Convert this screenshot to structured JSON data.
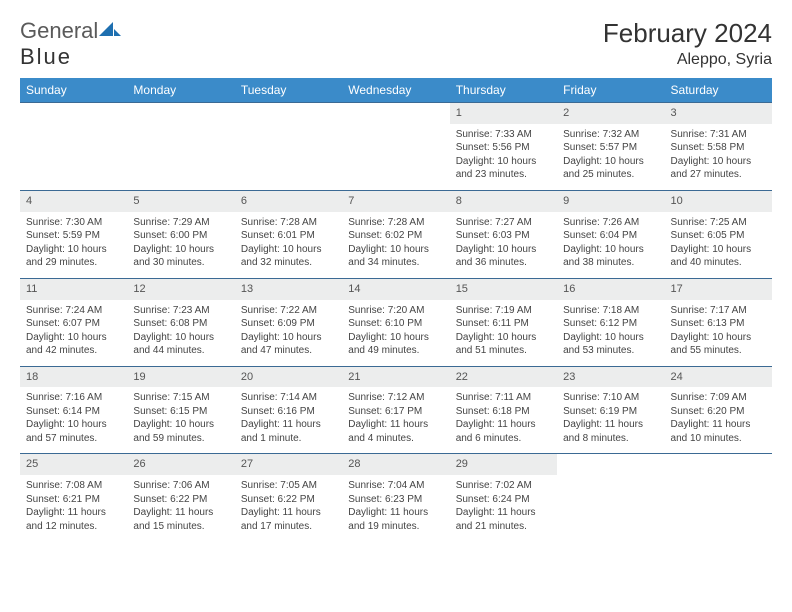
{
  "brand": {
    "part1": "General",
    "part2": "Blue"
  },
  "title": "February 2024",
  "location": "Aleppo, Syria",
  "colors": {
    "header_bg": "#3b8bc9",
    "header_fg": "#ffffff",
    "daynum_bg": "#eceded",
    "rule": "#3b6a94",
    "logo_blue": "#1e6fb0"
  },
  "weekdays": [
    "Sunday",
    "Monday",
    "Tuesday",
    "Wednesday",
    "Thursday",
    "Friday",
    "Saturday"
  ],
  "weeks": [
    [
      null,
      null,
      null,
      null,
      {
        "n": "1",
        "sr": "7:33 AM",
        "ss": "5:56 PM",
        "dl": "10 hours and 23 minutes."
      },
      {
        "n": "2",
        "sr": "7:32 AM",
        "ss": "5:57 PM",
        "dl": "10 hours and 25 minutes."
      },
      {
        "n": "3",
        "sr": "7:31 AM",
        "ss": "5:58 PM",
        "dl": "10 hours and 27 minutes."
      }
    ],
    [
      {
        "n": "4",
        "sr": "7:30 AM",
        "ss": "5:59 PM",
        "dl": "10 hours and 29 minutes."
      },
      {
        "n": "5",
        "sr": "7:29 AM",
        "ss": "6:00 PM",
        "dl": "10 hours and 30 minutes."
      },
      {
        "n": "6",
        "sr": "7:28 AM",
        "ss": "6:01 PM",
        "dl": "10 hours and 32 minutes."
      },
      {
        "n": "7",
        "sr": "7:28 AM",
        "ss": "6:02 PM",
        "dl": "10 hours and 34 minutes."
      },
      {
        "n": "8",
        "sr": "7:27 AM",
        "ss": "6:03 PM",
        "dl": "10 hours and 36 minutes."
      },
      {
        "n": "9",
        "sr": "7:26 AM",
        "ss": "6:04 PM",
        "dl": "10 hours and 38 minutes."
      },
      {
        "n": "10",
        "sr": "7:25 AM",
        "ss": "6:05 PM",
        "dl": "10 hours and 40 minutes."
      }
    ],
    [
      {
        "n": "11",
        "sr": "7:24 AM",
        "ss": "6:07 PM",
        "dl": "10 hours and 42 minutes."
      },
      {
        "n": "12",
        "sr": "7:23 AM",
        "ss": "6:08 PM",
        "dl": "10 hours and 44 minutes."
      },
      {
        "n": "13",
        "sr": "7:22 AM",
        "ss": "6:09 PM",
        "dl": "10 hours and 47 minutes."
      },
      {
        "n": "14",
        "sr": "7:20 AM",
        "ss": "6:10 PM",
        "dl": "10 hours and 49 minutes."
      },
      {
        "n": "15",
        "sr": "7:19 AM",
        "ss": "6:11 PM",
        "dl": "10 hours and 51 minutes."
      },
      {
        "n": "16",
        "sr": "7:18 AM",
        "ss": "6:12 PM",
        "dl": "10 hours and 53 minutes."
      },
      {
        "n": "17",
        "sr": "7:17 AM",
        "ss": "6:13 PM",
        "dl": "10 hours and 55 minutes."
      }
    ],
    [
      {
        "n": "18",
        "sr": "7:16 AM",
        "ss": "6:14 PM",
        "dl": "10 hours and 57 minutes."
      },
      {
        "n": "19",
        "sr": "7:15 AM",
        "ss": "6:15 PM",
        "dl": "10 hours and 59 minutes."
      },
      {
        "n": "20",
        "sr": "7:14 AM",
        "ss": "6:16 PM",
        "dl": "11 hours and 1 minute."
      },
      {
        "n": "21",
        "sr": "7:12 AM",
        "ss": "6:17 PM",
        "dl": "11 hours and 4 minutes."
      },
      {
        "n": "22",
        "sr": "7:11 AM",
        "ss": "6:18 PM",
        "dl": "11 hours and 6 minutes."
      },
      {
        "n": "23",
        "sr": "7:10 AM",
        "ss": "6:19 PM",
        "dl": "11 hours and 8 minutes."
      },
      {
        "n": "24",
        "sr": "7:09 AM",
        "ss": "6:20 PM",
        "dl": "11 hours and 10 minutes."
      }
    ],
    [
      {
        "n": "25",
        "sr": "7:08 AM",
        "ss": "6:21 PM",
        "dl": "11 hours and 12 minutes."
      },
      {
        "n": "26",
        "sr": "7:06 AM",
        "ss": "6:22 PM",
        "dl": "11 hours and 15 minutes."
      },
      {
        "n": "27",
        "sr": "7:05 AM",
        "ss": "6:22 PM",
        "dl": "11 hours and 17 minutes."
      },
      {
        "n": "28",
        "sr": "7:04 AM",
        "ss": "6:23 PM",
        "dl": "11 hours and 19 minutes."
      },
      {
        "n": "29",
        "sr": "7:02 AM",
        "ss": "6:24 PM",
        "dl": "11 hours and 21 minutes."
      },
      null,
      null
    ]
  ],
  "labels": {
    "sunrise": "Sunrise:",
    "sunset": "Sunset:",
    "daylight": "Daylight:"
  }
}
